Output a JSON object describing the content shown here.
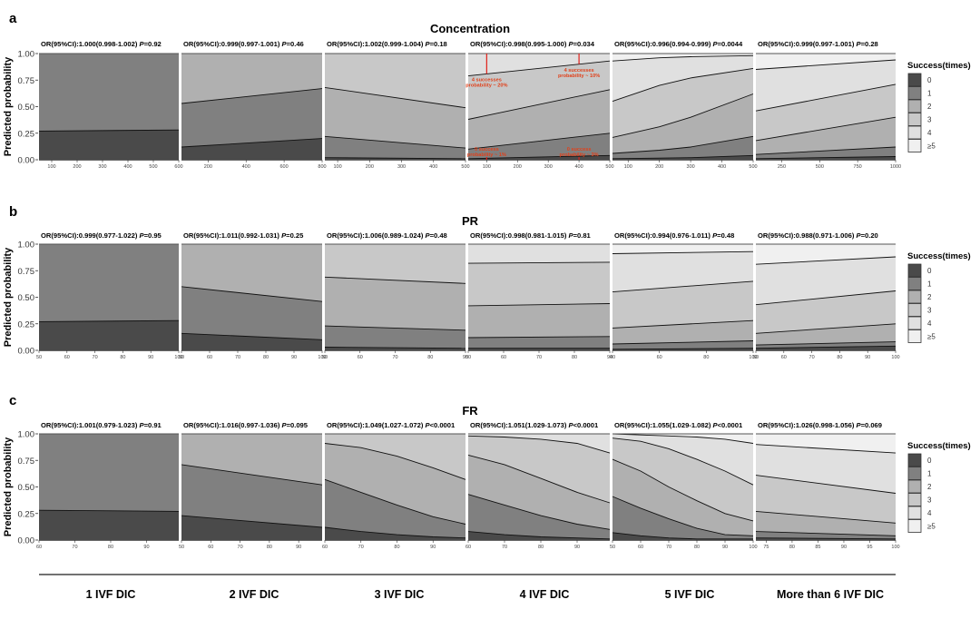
{
  "chart_data": {
    "type": "area",
    "subtype": "stacked-probability",
    "ylabel": "Predicted probability",
    "yticks": [
      "0.00",
      "0.25",
      "0.50",
      "0.75",
      "1.00"
    ],
    "ylim": [
      0,
      1
    ],
    "legend": {
      "title": "Success(times)",
      "placement": "right",
      "entries": [
        {
          "label": "0",
          "color": "#4a4a4a"
        },
        {
          "label": "1",
          "color": "#808080"
        },
        {
          "label": "2",
          "color": "#b0b0b0"
        },
        {
          "label": "3",
          "color": "#c8c8c8"
        },
        {
          "label": "4",
          "color": "#e0e0e0"
        },
        {
          "label": "≥5",
          "color": "#f0f0f0"
        }
      ]
    },
    "groups": [
      "1 IVF DIC",
      "2 IVF DIC",
      "3 IVF DIC",
      "4 IVF DIC",
      "5 IVF DIC",
      "More than 6 IVF DIC"
    ],
    "rows": [
      {
        "letter": "a",
        "title": "Concentration",
        "panels": [
          {
            "or_text": "OR(95%CI):1.000(0.998-1.002) ",
            "p_text": "P",
            "p_value": "=0.92",
            "xlim": [
              50,
              600
            ],
            "xticks": [
              100,
              200,
              300,
              400,
              500,
              600
            ],
            "x": [
              50,
              600
            ],
            "boundaries": [
              [
                0.27,
                0.28
              ],
              [
                1.0,
                1.0
              ]
            ]
          },
          {
            "or_text": "OR(95%CI):0.999(0.997-1.001) ",
            "p_text": "P",
            "p_value": "=0.46",
            "xlim": [
              60,
              800
            ],
            "xticks": [
              200,
              400,
              600,
              800
            ],
            "x": [
              60,
              800
            ],
            "boundaries": [
              [
                0.12,
                0.2
              ],
              [
                0.53,
                0.67
              ],
              [
                1.0,
                1.0
              ]
            ]
          },
          {
            "or_text": "OR(95%CI):1.002(0.999-1.004) ",
            "p_text": "P",
            "p_value": "=0.18",
            "xlim": [
              60,
              500
            ],
            "xticks": [
              100,
              200,
              300,
              400,
              500
            ],
            "x": [
              60,
              500
            ],
            "boundaries": [
              [
                0.02,
                0.01
              ],
              [
                0.22,
                0.11
              ],
              [
                0.68,
                0.49
              ],
              [
                1.0,
                1.0
              ]
            ]
          },
          {
            "or_text": "OR(95%CI):0.998(0.995-1.000) ",
            "p_text": "P",
            "p_value": "=0.034",
            "xlim": [
              40,
              500
            ],
            "xticks": [
              100,
              200,
              300,
              400,
              500
            ],
            "x": [
              40,
              500
            ],
            "boundaries": [
              [
                0.01,
                0.04
              ],
              [
                0.1,
                0.25
              ],
              [
                0.38,
                0.66
              ],
              [
                0.79,
                0.93
              ],
              [
                1.0,
                1.0
              ]
            ],
            "annotations": [
              {
                "text": [
                  "4 successes",
                  "probability ~ 20%"
                ],
                "x": 100,
                "at": "top"
              },
              {
                "text": [
                  "4 successes",
                  "probability ~ 10%"
                ],
                "x": 400,
                "at": "top"
              },
              {
                "text": [
                  "0 success",
                  "probability ~ 1%"
                ],
                "x": 100,
                "at": "bottom"
              },
              {
                "text": [
                  "0 success",
                  "probability ~ 3%"
                ],
                "x": 400,
                "at": "bottom"
              }
            ]
          },
          {
            "or_text": "OR(95%CI):0.996(0.994-0.999) ",
            "p_text": "P",
            "p_value": "=0.0044",
            "xlim": [
              50,
              500
            ],
            "xticks": [
              100,
              200,
              300,
              400,
              500
            ],
            "x": [
              50,
              200,
              300,
              500
            ],
            "boundaries": [
              [
                0.01,
                0.015,
                0.02,
                0.04
              ],
              [
                0.06,
                0.09,
                0.12,
                0.22
              ],
              [
                0.21,
                0.31,
                0.4,
                0.62
              ],
              [
                0.55,
                0.7,
                0.77,
                0.86
              ],
              [
                0.93,
                0.96,
                0.97,
                0.98
              ],
              [
                1.0,
                1.0,
                1.0,
                1.0
              ]
            ]
          },
          {
            "or_text": "OR(95%CI):0.999(0.997-1.001) ",
            "p_text": "P",
            "p_value": "=0.28",
            "xlim": [
              80,
              1000
            ],
            "xticks": [
              250,
              500,
              750,
              1000
            ],
            "x": [
              80,
              1000
            ],
            "boundaries": [
              [
                0.01,
                0.03
              ],
              [
                0.05,
                0.12
              ],
              [
                0.18,
                0.4
              ],
              [
                0.46,
                0.71
              ],
              [
                0.85,
                0.94
              ],
              [
                1.0,
                1.0
              ]
            ]
          }
        ]
      },
      {
        "letter": "b",
        "title": "PR",
        "panels": [
          {
            "or_text": "OR(95%CI):0.999(0.977-1.022) ",
            "p_text": "P",
            "p_value": "=0.95",
            "xlim": [
              50,
              100
            ],
            "xticks": [
              50,
              60,
              70,
              80,
              90,
              100
            ],
            "x": [
              50,
              100
            ],
            "boundaries": [
              [
                0.27,
                0.28
              ],
              [
                1.0,
                1.0
              ]
            ]
          },
          {
            "or_text": "OR(95%CI):1.011(0.992-1.031) ",
            "p_text": "P",
            "p_value": "=0.25",
            "xlim": [
              50,
              100
            ],
            "xticks": [
              50,
              60,
              70,
              80,
              90,
              100
            ],
            "x": [
              50,
              100
            ],
            "boundaries": [
              [
                0.16,
                0.1
              ],
              [
                0.6,
                0.46
              ],
              [
                1.0,
                1.0
              ]
            ]
          },
          {
            "or_text": "OR(95%CI):1.006(0.989-1.024) ",
            "p_text": "P",
            "p_value": "=0.48",
            "xlim": [
              50,
              90
            ],
            "xticks": [
              50,
              60,
              70,
              80,
              90
            ],
            "x": [
              50,
              90
            ],
            "boundaries": [
              [
                0.03,
                0.02
              ],
              [
                0.23,
                0.19
              ],
              [
                0.69,
                0.63
              ],
              [
                1.0,
                1.0
              ]
            ]
          },
          {
            "or_text": "OR(95%CI):0.998(0.981-1.015) ",
            "p_text": "P",
            "p_value": "=0.81",
            "xlim": [
              50,
              90
            ],
            "xticks": [
              50,
              60,
              70,
              80,
              90
            ],
            "x": [
              50,
              90
            ],
            "boundaries": [
              [
                0.02,
                0.02
              ],
              [
                0.12,
                0.13
              ],
              [
                0.42,
                0.44
              ],
              [
                0.82,
                0.83
              ],
              [
                1.0,
                1.0
              ]
            ]
          },
          {
            "or_text": "OR(95%CI):0.994(0.976-1.011) ",
            "p_text": "P",
            "p_value": "=0.48",
            "xlim": [
              40,
              100
            ],
            "xticks": [
              40,
              60,
              80,
              100
            ],
            "x": [
              40,
              100
            ],
            "boundaries": [
              [
                0.01,
                0.02
              ],
              [
                0.06,
                0.09
              ],
              [
                0.21,
                0.28
              ],
              [
                0.55,
                0.65
              ],
              [
                0.91,
                0.93
              ],
              [
                1.0,
                1.0
              ]
            ]
          },
          {
            "or_text": "OR(95%CI):0.988(0.971-1.006) ",
            "p_text": "P",
            "p_value": "=0.20",
            "xlim": [
              50,
              100
            ],
            "xticks": [
              50,
              60,
              70,
              80,
              90,
              100
            ],
            "x": [
              50,
              100
            ],
            "boundaries": [
              [
                0.02,
                0.04
              ],
              [
                0.05,
                0.08
              ],
              [
                0.16,
                0.25
              ],
              [
                0.43,
                0.56
              ],
              [
                0.81,
                0.88
              ],
              [
                1.0,
                1.0
              ]
            ]
          }
        ]
      },
      {
        "letter": "c",
        "title": "FR",
        "panels": [
          {
            "or_text": "OR(95%CI):1.001(0.979-1.023) ",
            "p_text": "P",
            "p_value": "=0.91",
            "xlim": [
              60,
              99
            ],
            "xticks": [
              60,
              70,
              80,
              90
            ],
            "x": [
              60,
              99
            ],
            "boundaries": [
              [
                0.28,
                0.27
              ],
              [
                1.0,
                1.0
              ]
            ]
          },
          {
            "or_text": "OR(95%CI):1.016(0.997-1.036) ",
            "p_text": "P",
            "p_value": "=0.095",
            "xlim": [
              50,
              98
            ],
            "xticks": [
              50,
              60,
              70,
              80,
              90
            ],
            "x": [
              50,
              98
            ],
            "boundaries": [
              [
                0.23,
                0.12
              ],
              [
                0.71,
                0.52
              ],
              [
                1.0,
                1.0
              ]
            ]
          },
          {
            "or_text": "OR(95%CI):1.049(1.027-1.072) ",
            "p_text": "P",
            "p_value": "<0.0001",
            "xlim": [
              60,
              99
            ],
            "xticks": [
              60,
              70,
              80,
              90
            ],
            "x": [
              60,
              70,
              80,
              90,
              99
            ],
            "boundaries": [
              [
                0.12,
                0.08,
                0.05,
                0.03,
                0.02
              ],
              [
                0.57,
                0.45,
                0.33,
                0.22,
                0.15
              ],
              [
                0.91,
                0.87,
                0.79,
                0.68,
                0.57
              ],
              [
                1.0,
                1.0,
                1.0,
                1.0,
                1.0
              ]
            ]
          },
          {
            "or_text": "OR(95%CI):1.051(1.029-1.073) ",
            "p_text": "P",
            "p_value": "<0.0001",
            "xlim": [
              60,
              99
            ],
            "xticks": [
              60,
              70,
              80,
              90
            ],
            "x": [
              60,
              70,
              80,
              90,
              99
            ],
            "boundaries": [
              [
                0.08,
                0.05,
                0.03,
                0.02,
                0.01
              ],
              [
                0.43,
                0.33,
                0.23,
                0.15,
                0.1
              ],
              [
                0.8,
                0.71,
                0.58,
                0.45,
                0.35
              ],
              [
                0.98,
                0.97,
                0.95,
                0.91,
                0.82
              ],
              [
                1.0,
                1.0,
                1.0,
                1.0,
                1.0
              ]
            ]
          },
          {
            "or_text": "OR(95%CI):1.055(1.029-1.082) ",
            "p_text": "P",
            "p_value": "<0.0001",
            "xlim": [
              50,
              100
            ],
            "xticks": [
              50,
              60,
              70,
              80,
              90,
              100
            ],
            "x": [
              50,
              60,
              70,
              80,
              90,
              100
            ],
            "boundaries": [
              [
                0.07,
                0.04,
                0.02,
                0.01,
                0.01,
                0.01
              ],
              [
                0.41,
                0.3,
                0.2,
                0.11,
                0.05,
                0.04
              ],
              [
                0.76,
                0.65,
                0.5,
                0.37,
                0.25,
                0.18
              ],
              [
                0.96,
                0.93,
                0.86,
                0.76,
                0.65,
                0.52
              ],
              [
                1.0,
                0.99,
                0.98,
                0.97,
                0.95,
                0.91
              ],
              [
                1.0,
                1.0,
                1.0,
                1.0,
                1.0,
                1.0
              ]
            ]
          },
          {
            "or_text": "OR(95%CI):1.026(0.998-1.056) ",
            "p_text": "P",
            "p_value": "=0.069",
            "xlim": [
              73,
              100
            ],
            "xticks": [
              75,
              80,
              85,
              90,
              95,
              100
            ],
            "x": [
              73,
              100
            ],
            "boundaries": [
              [
                0.02,
                0.01
              ],
              [
                0.08,
                0.04
              ],
              [
                0.27,
                0.16
              ],
              [
                0.61,
                0.44
              ],
              [
                0.9,
                0.82
              ],
              [
                1.0,
                1.0
              ]
            ]
          }
        ]
      }
    ]
  }
}
